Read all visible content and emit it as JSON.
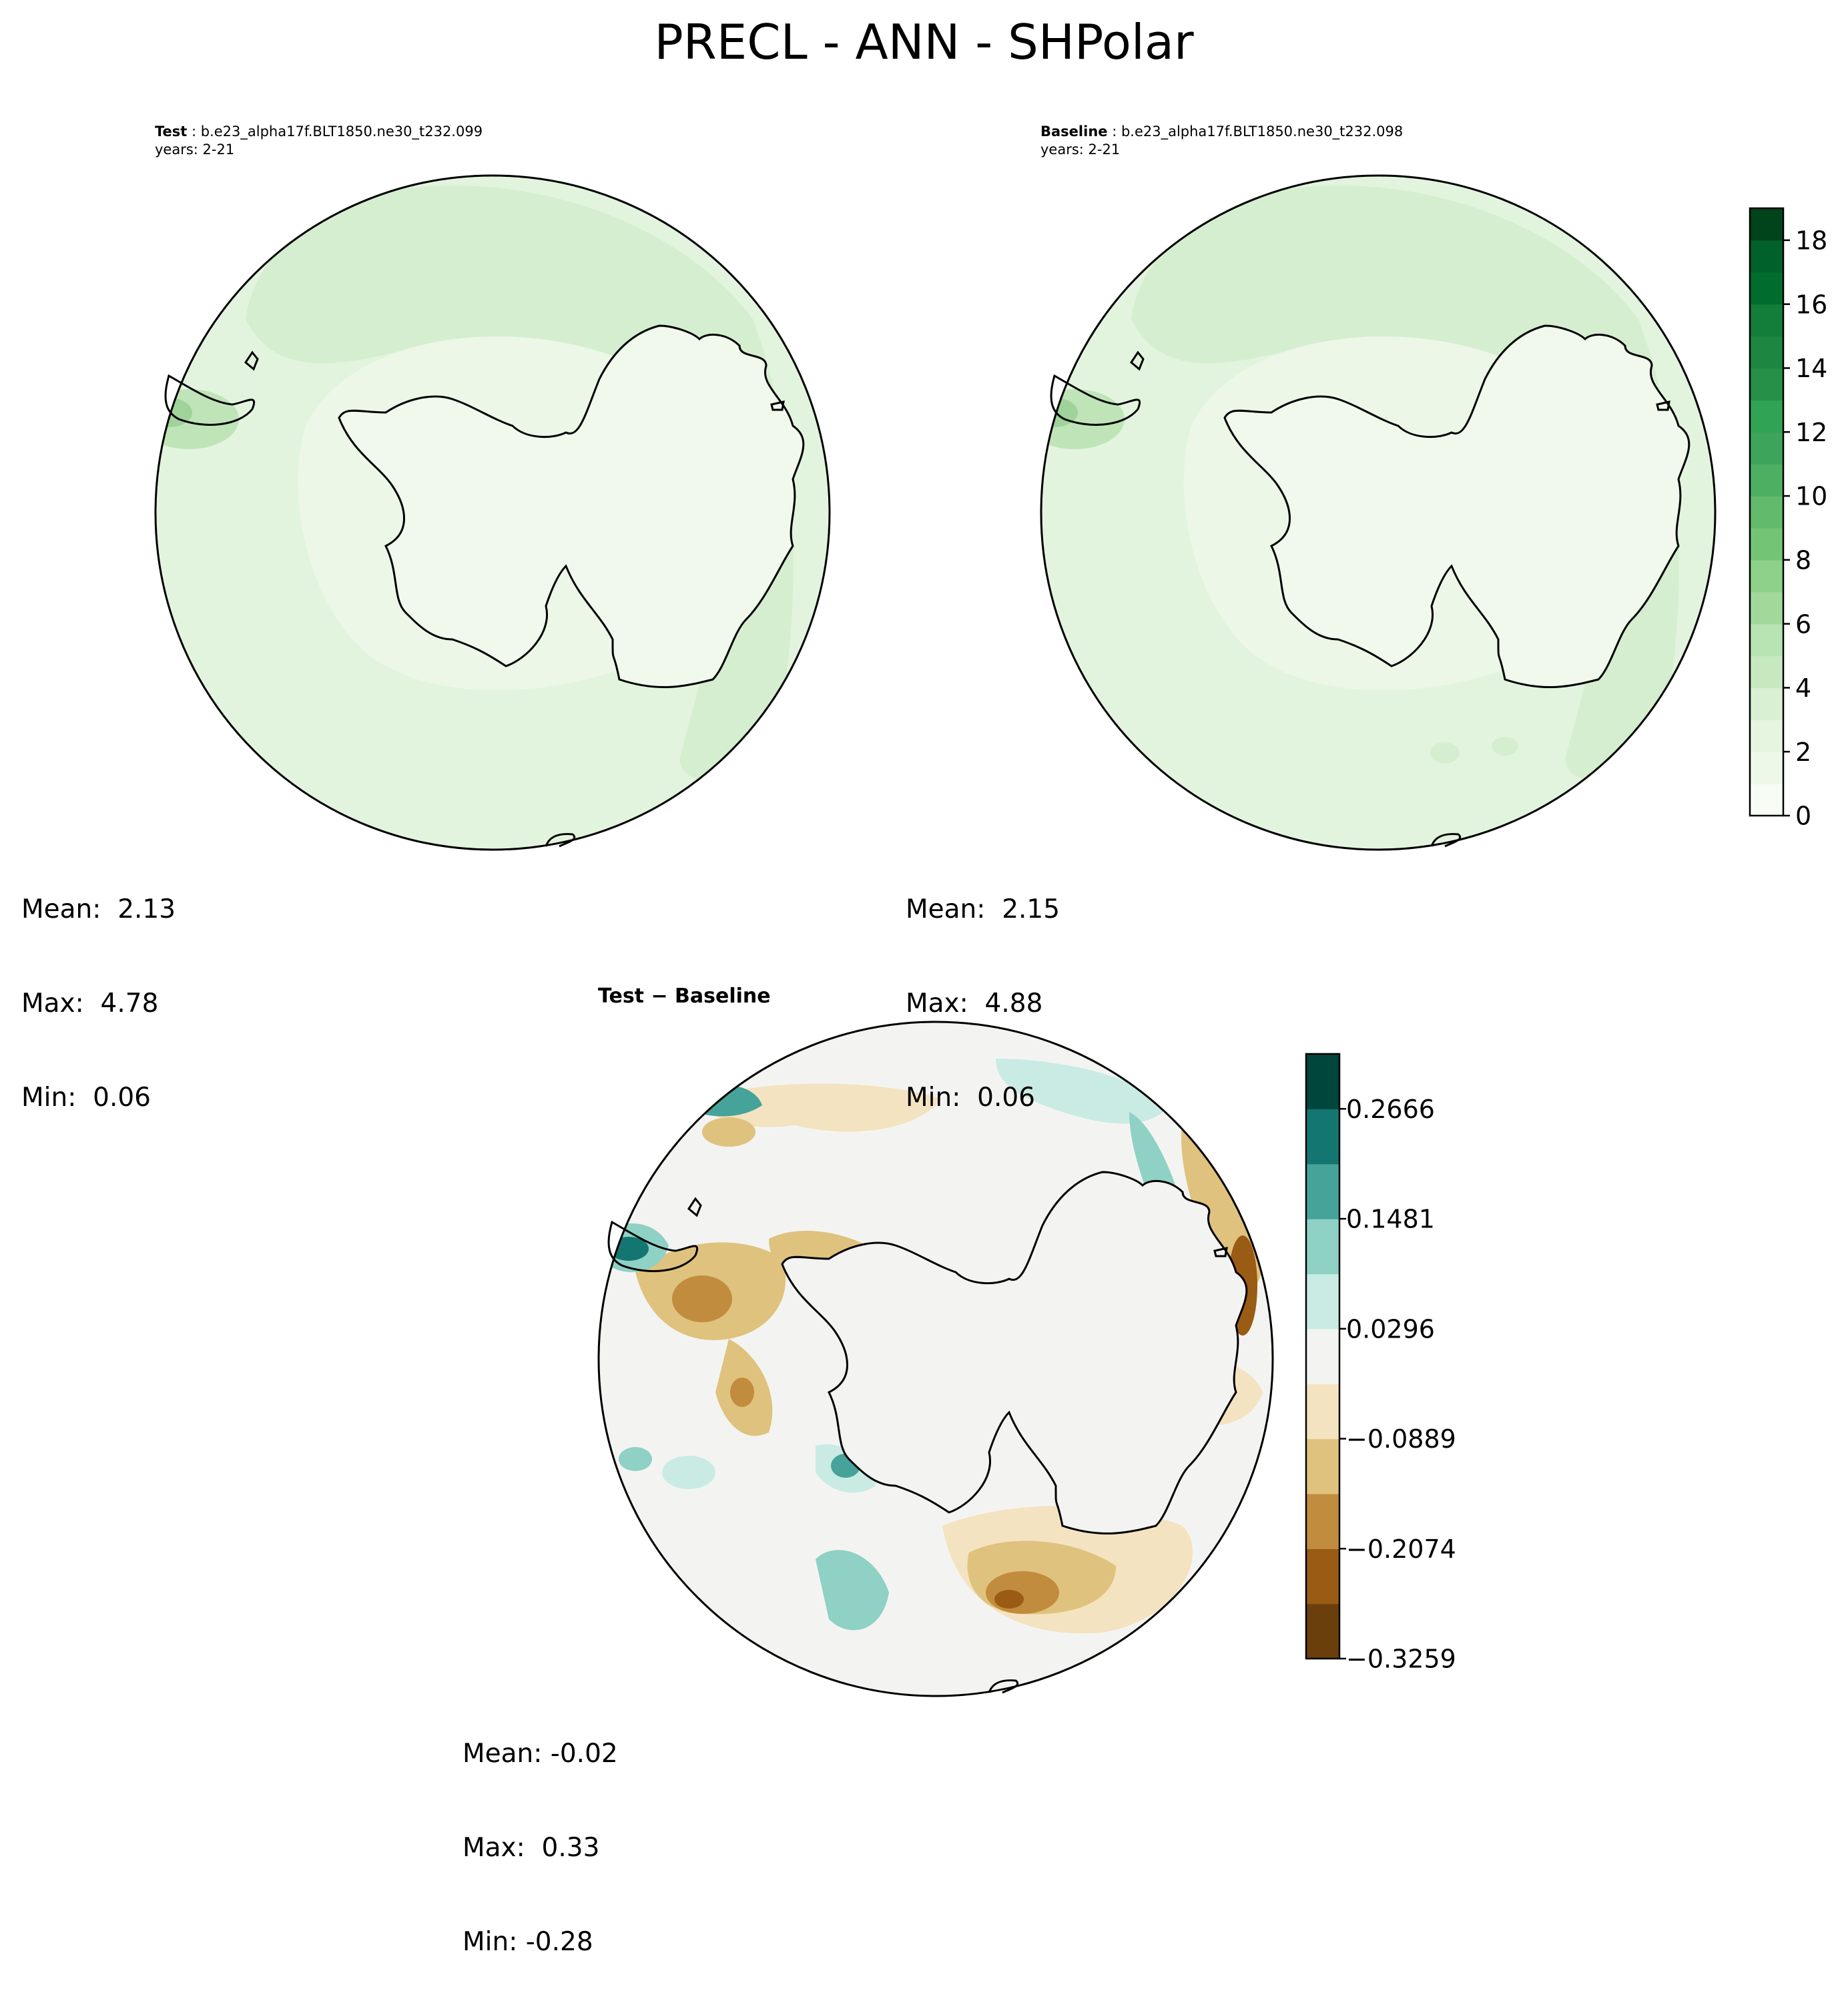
{
  "title": "PRECL - ANN - SHPolar",
  "panels": {
    "test": {
      "label": "Test",
      "case": " : b.e23_alpha17f.BLT1850.ne30_t232.099",
      "years": "years: 2-21",
      "mean": "Mean:  2.13",
      "max": "Max:  4.78",
      "min": "Min:  0.06"
    },
    "baseline": {
      "label": "Baseline",
      "case": " : b.e23_alpha17f.BLT1850.ne30_t232.098",
      "years": "years: 2-21",
      "mean": "Mean:  2.15",
      "max": "Max:  4.88",
      "min": "Min:  0.06"
    },
    "diff": {
      "title": "Test − Baseline",
      "mean": "Mean: -0.02",
      "max": "Max:  0.33",
      "min": "Min: -0.28"
    }
  },
  "colorbars": {
    "main": {
      "ticks": [
        "0",
        "2",
        "4",
        "6",
        "8",
        "10",
        "12",
        "14",
        "16",
        "18"
      ],
      "tick_values": [
        0,
        2,
        4,
        6,
        8,
        10,
        12,
        14,
        16,
        18
      ],
      "vmin": 0,
      "vmax": 19,
      "colors": [
        "#f7fcf5",
        "#edf8e9",
        "#e5f5e0",
        "#d9f0d3",
        "#c7e9c0",
        "#b8e3b2",
        "#a1d99b",
        "#8ed18a",
        "#74c476",
        "#62bb6d",
        "#4daf62",
        "#3da45c",
        "#31a354",
        "#279048",
        "#1d8641",
        "#137e3a",
        "#006d2c",
        "#00612a",
        "#00441b"
      ]
    },
    "diff": {
      "ticks": [
        "0.2666",
        "0.1481",
        "0.0296",
        "−0.0889",
        "−0.2074",
        "−0.3259"
      ],
      "tick_values": [
        0.2666,
        0.1481,
        0.0296,
        -0.0889,
        -0.2074,
        -0.3259
      ],
      "vmin": -0.3259,
      "vmax": 0.3258,
      "colors": [
        "#6b3f0c",
        "#9a5b14",
        "#c28c3e",
        "#dfc27d",
        "#f4e3c0",
        "#f3f4f2",
        "#c9ebe4",
        "#8fd1c4",
        "#46a39a",
        "#147670",
        "#01463c"
      ]
    }
  },
  "map": {
    "projection": "SHPolar",
    "coastline_color": "#000000"
  }
}
